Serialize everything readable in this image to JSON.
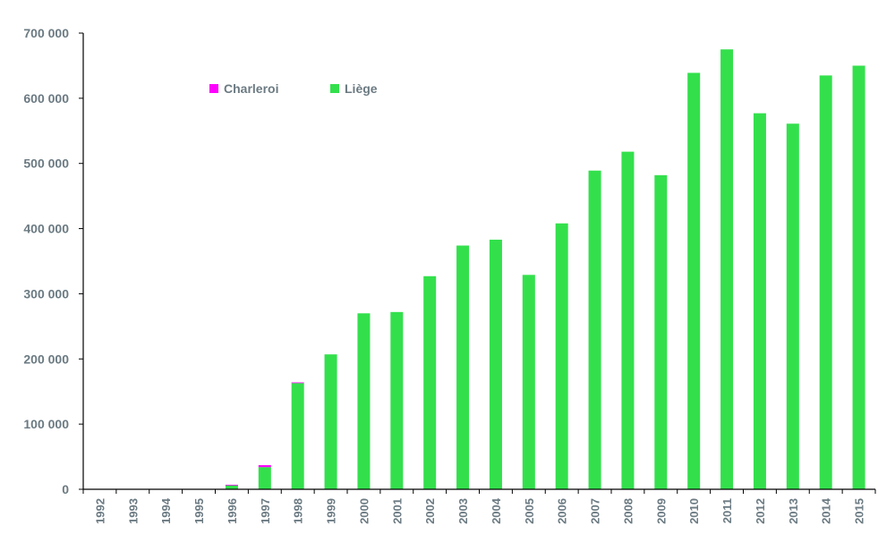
{
  "chart_data": {
    "type": "bar",
    "stacked": true,
    "categories": [
      "1992",
      "1993",
      "1994",
      "1995",
      "1996",
      "1997",
      "1998",
      "1999",
      "2000",
      "2001",
      "2002",
      "2003",
      "2004",
      "2005",
      "2006",
      "2007",
      "2008",
      "2009",
      "2010",
      "2011",
      "2012",
      "2013",
      "2014",
      "2015"
    ],
    "series": [
      {
        "name": "Charleroi",
        "color": "#ff00ff",
        "values": [
          0,
          0,
          0,
          0,
          500,
          3000,
          1000,
          0,
          0,
          0,
          0,
          0,
          0,
          0,
          0,
          0,
          0,
          0,
          0,
          0,
          0,
          0,
          0,
          0
        ]
      },
      {
        "name": "Liège",
        "color": "#33e04c",
        "values": [
          0,
          0,
          0,
          0,
          6500,
          34000,
          163000,
          207000,
          270000,
          272000,
          327000,
          374000,
          383000,
          329000,
          408000,
          489000,
          518000,
          482000,
          639000,
          675000,
          577000,
          561000,
          635000,
          650000
        ]
      }
    ],
    "yticks": [
      "0",
      "100 000",
      "200 000",
      "300 000",
      "400 000",
      "500 000",
      "600 000",
      "700 000"
    ],
    "ylim": [
      0,
      700000
    ],
    "legend_position": "top-left",
    "grid": false
  }
}
